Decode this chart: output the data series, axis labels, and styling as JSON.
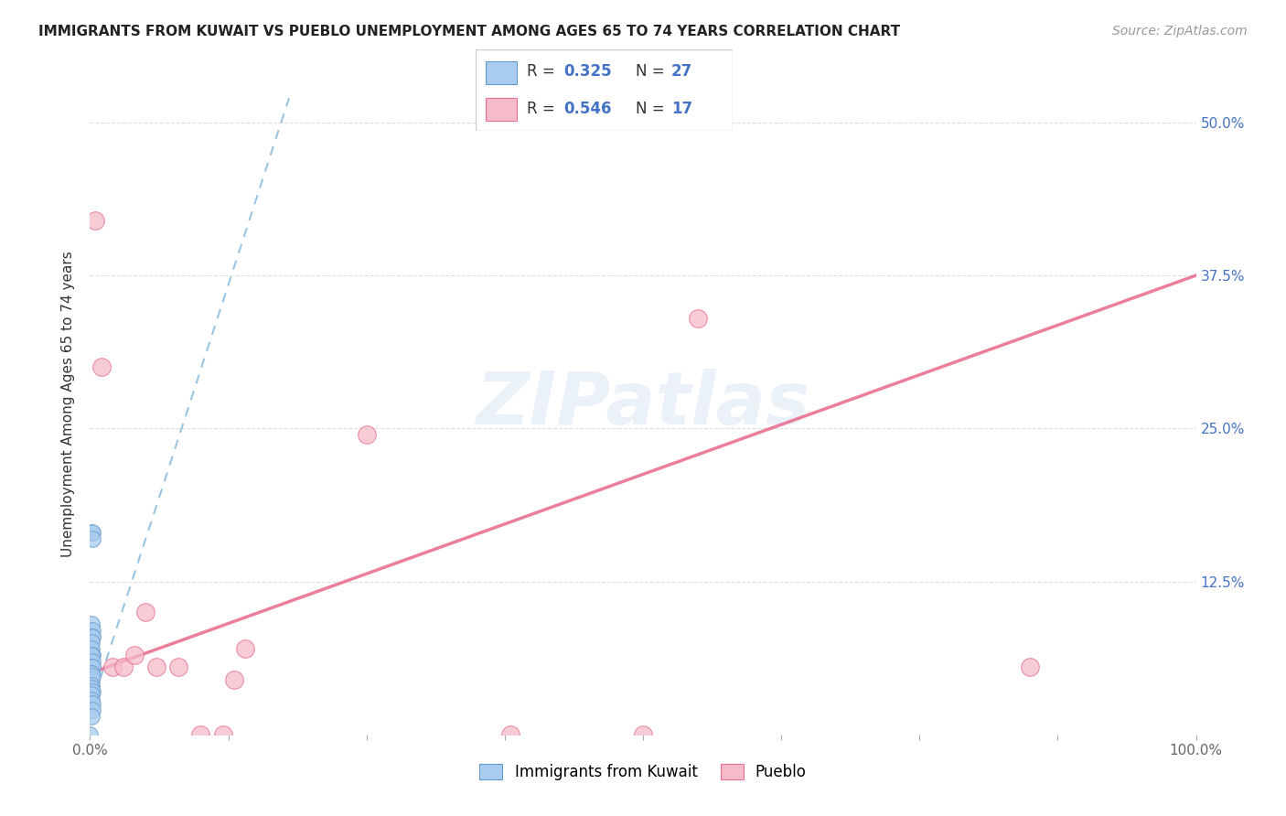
{
  "title": "IMMIGRANTS FROM KUWAIT VS PUEBLO UNEMPLOYMENT AMONG AGES 65 TO 74 YEARS CORRELATION CHART",
  "source": "Source: ZipAtlas.com",
  "ylabel": "Unemployment Among Ages 65 to 74 years",
  "legend_label1": "Immigrants from Kuwait",
  "legend_label2": "Pueblo",
  "R1": 0.325,
  "N1": 27,
  "R2": 0.546,
  "N2": 17,
  "blue_x": [
    0.001,
    0.002,
    0.002,
    0.001,
    0.002,
    0.001,
    0.002,
    0.001,
    0.001,
    0.002,
    0.001,
    0.002,
    0.001,
    0.001,
    0.002,
    0.001,
    0.001,
    0.002,
    0.001,
    0.001,
    0.002,
    0.001,
    0.001,
    0.002,
    0.002,
    0.001,
    0.0
  ],
  "blue_y": [
    0.165,
    0.165,
    0.16,
    0.09,
    0.085,
    0.08,
    0.08,
    0.075,
    0.07,
    0.065,
    0.065,
    0.06,
    0.055,
    0.05,
    0.055,
    0.05,
    0.045,
    0.048,
    0.04,
    0.038,
    0.035,
    0.033,
    0.028,
    0.025,
    0.02,
    0.015,
    0.0
  ],
  "pink_x": [
    0.005,
    0.01,
    0.02,
    0.03,
    0.04,
    0.05,
    0.06,
    0.08,
    0.1,
    0.12,
    0.13,
    0.14,
    0.25,
    0.38,
    0.5,
    0.55,
    0.85
  ],
  "pink_y": [
    0.42,
    0.3,
    0.055,
    0.055,
    0.065,
    0.1,
    0.055,
    0.055,
    0.0,
    0.0,
    0.045,
    0.07,
    0.245,
    0.0,
    0.0,
    0.34,
    0.055
  ],
  "blue_line_x": [
    0.0,
    0.18
  ],
  "blue_line_y": [
    0.02,
    0.52
  ],
  "pink_line_x": [
    0.0,
    1.0
  ],
  "pink_line_y": [
    0.05,
    0.375
  ],
  "xlim": [
    0.0,
    1.0
  ],
  "ylim": [
    0.0,
    0.54
  ],
  "xticks": [
    0.0,
    0.125,
    0.25,
    0.375,
    0.5,
    0.625,
    0.75,
    0.875,
    1.0
  ],
  "xtick_labels": [
    "0.0%",
    "",
    "",
    "",
    "",
    "",
    "",
    "",
    "100.0%"
  ],
  "ytick_values": [
    0.0,
    0.125,
    0.25,
    0.375,
    0.5
  ],
  "ytick_labels": [
    "",
    "12.5%",
    "25.0%",
    "37.5%",
    "50.0%"
  ],
  "blue_dot_color": "#A8CCEE",
  "blue_edge_color": "#6699CC",
  "pink_dot_color": "#F5BBCA",
  "pink_edge_color": "#E87090",
  "blue_line_color": "#88BBDD",
  "pink_line_color": "#E87090",
  "watermark_color": "#C5D8EE",
  "title_fontsize": 11,
  "axis_label_fontsize": 11,
  "tick_fontsize": 11,
  "source_fontsize": 10,
  "legend_fontsize": 12
}
